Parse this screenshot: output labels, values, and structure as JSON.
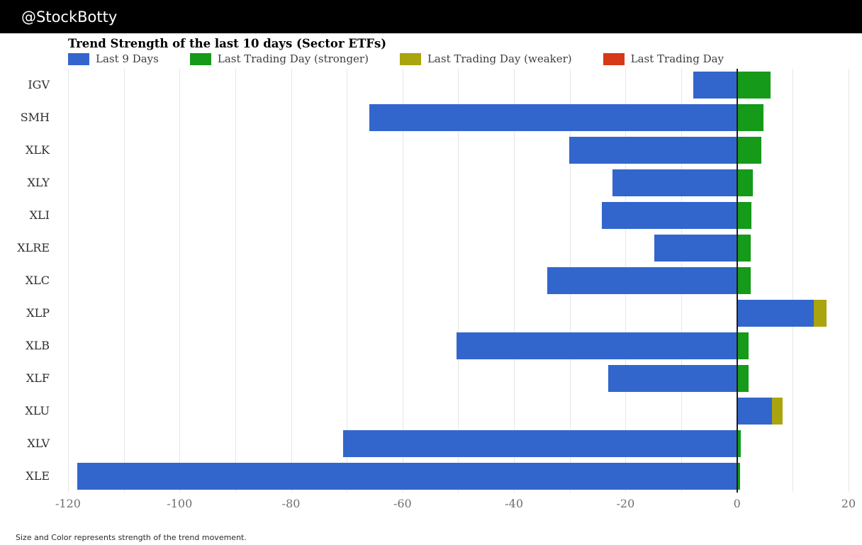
{
  "header": {
    "handle": "@StockBotty"
  },
  "chart": {
    "title": "Trend Strength of the last 10 days (Sector ETFs)",
    "legend": [
      {
        "label": "Last 9 Days",
        "color": "#3366cc"
      },
      {
        "label": "Last Trading Day (stronger)",
        "color": "#159a19"
      },
      {
        "label": "Last Trading Day (weaker)",
        "color": "#aaa40f"
      },
      {
        "label": "Last Trading Day",
        "color": "#d53915"
      }
    ],
    "colors": {
      "last_9_days": "#3366cc",
      "stronger": "#159a19",
      "weaker": "#aaa40f",
      "last_day": "#d53915",
      "zero_line": "#1c1c1c",
      "gridline": "#e6e6e6"
    }
  },
  "chart_data": {
    "type": "bar",
    "orientation": "horizontal",
    "title": "Trend Strength of the last 10 days (Sector ETFs)",
    "categories": [
      "IGV",
      "SMH",
      "XLK",
      "XLY",
      "XLI",
      "XLRE",
      "XLC",
      "XLP",
      "XLB",
      "XLF",
      "XLU",
      "XLV",
      "XLE"
    ],
    "series": [
      {
        "name": "Last 9 Days",
        "values": [
          -7.9,
          -66.0,
          -30.1,
          -22.4,
          -24.2,
          -14.8,
          -34.1,
          13.8,
          -50.3,
          -23.1,
          6.3,
          -70.6,
          -118.4
        ]
      },
      {
        "name": "Last Trading Day",
        "values": [
          6.0,
          4.7,
          4.3,
          2.8,
          2.6,
          2.4,
          2.4,
          2.2,
          2.1,
          2.1,
          1.9,
          0.7,
          0.5
        ],
        "types": [
          "stronger",
          "stronger",
          "stronger",
          "stronger",
          "stronger",
          "stronger",
          "stronger",
          "weaker",
          "stronger",
          "stronger",
          "weaker",
          "stronger",
          "stronger"
        ]
      }
    ],
    "xlim": [
      -120,
      21.4
    ],
    "x_ticks": [
      -120,
      -100,
      -80,
      -60,
      -40,
      -20,
      0,
      20
    ],
    "gridline_step": 10,
    "grid": true,
    "legend_position": "top"
  },
  "footer": {
    "note": "Size and Color represents strength of the trend movement."
  }
}
